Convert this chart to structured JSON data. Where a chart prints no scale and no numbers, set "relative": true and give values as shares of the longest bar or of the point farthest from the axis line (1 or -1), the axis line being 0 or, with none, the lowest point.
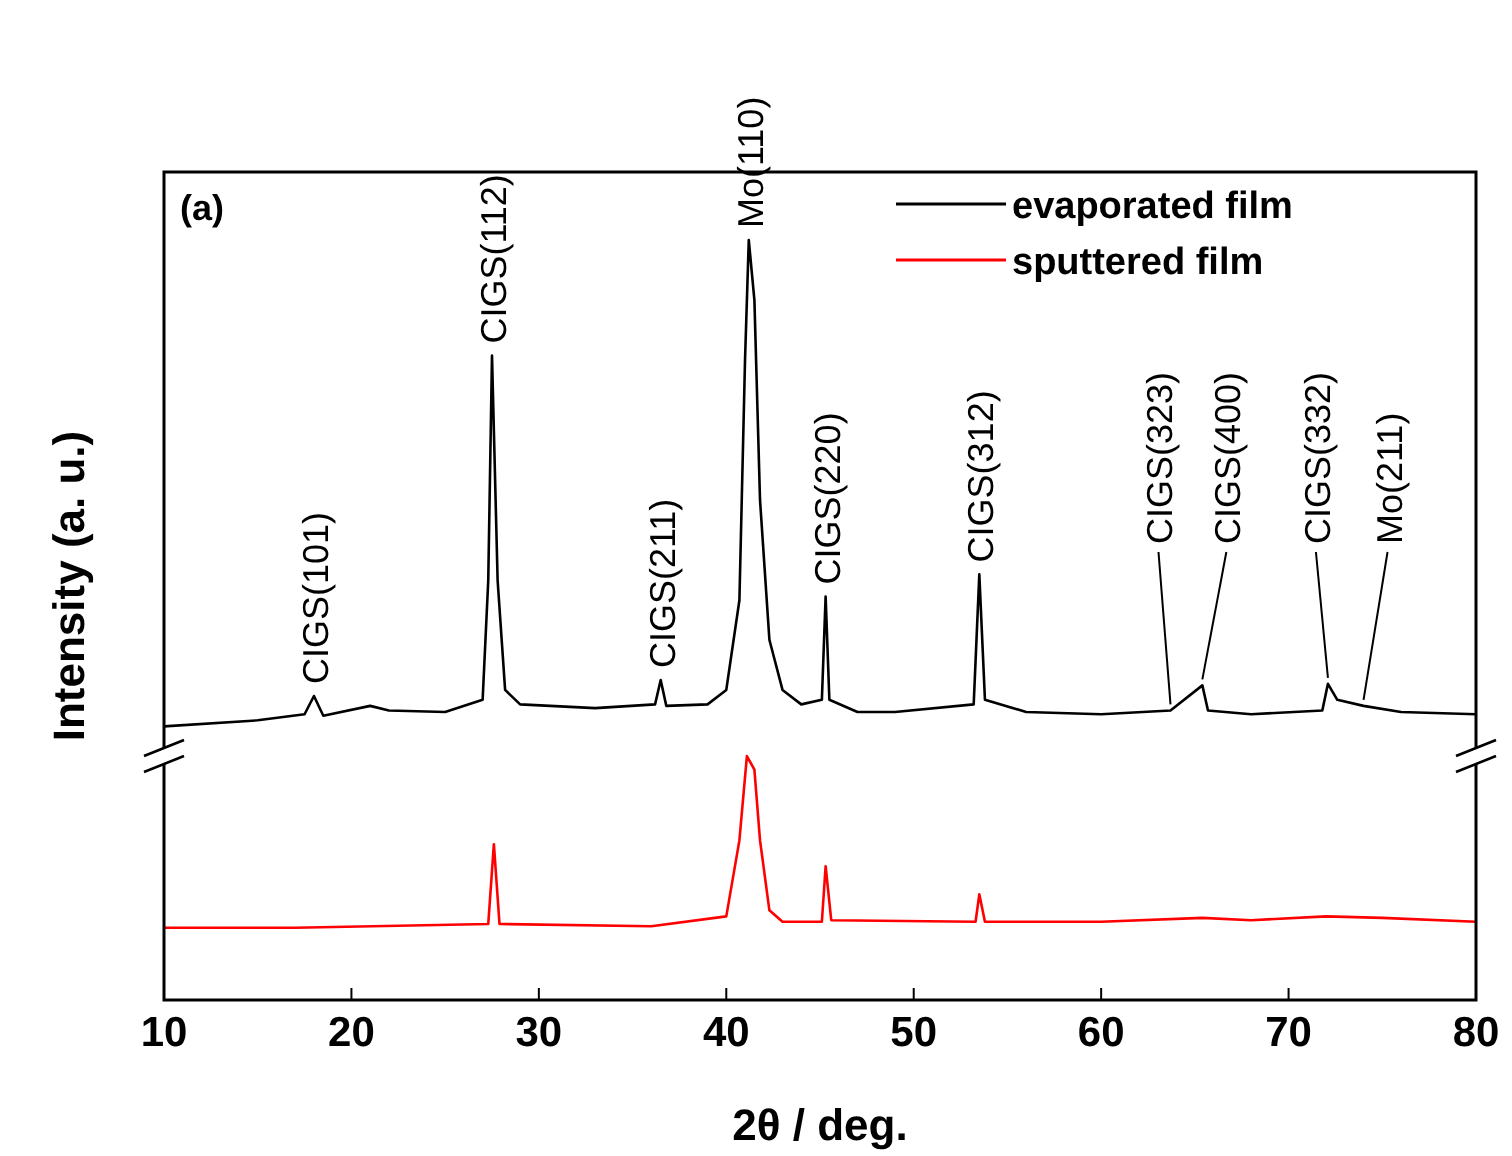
{
  "chart_data": {
    "type": "line",
    "relative": true,
    "xlabel": "2θ / deg.",
    "ylabel": "Intensity (a. u.)",
    "xlim": [
      10,
      80
    ],
    "xticks": [
      10,
      20,
      30,
      40,
      50,
      60,
      70,
      80
    ],
    "legend": "top right",
    "grid": false,
    "series": [
      {
        "name": "evaporated film",
        "color": "#000000",
        "x": [
          10,
          15,
          17.5,
          18,
          18.5,
          21,
          22,
          25,
          27,
          27.3,
          27.5,
          27.8,
          28.2,
          29,
          33,
          36.2,
          36.5,
          36.8,
          39,
          40,
          40.7,
          41.0,
          41.2,
          41.5,
          41.8,
          42.3,
          43,
          44,
          45.1,
          45.3,
          45.5,
          47,
          49,
          53.2,
          53.5,
          53.8,
          56,
          60,
          63.7,
          65.4,
          65.7,
          68,
          71.8,
          72.1,
          72.6,
          74,
          76,
          80
        ],
        "values": [
          0.36,
          0.368,
          0.376,
          0.4,
          0.374,
          0.387,
          0.381,
          0.379,
          0.395,
          0.552,
          0.848,
          0.552,
          0.408,
          0.389,
          0.384,
          0.389,
          0.421,
          0.387,
          0.389,
          0.408,
          0.526,
          0.842,
          1,
          0.921,
          0.658,
          0.474,
          0.408,
          0.389,
          0.395,
          0.531,
          0.395,
          0.379,
          0.379,
          0.389,
          0.56,
          0.395,
          0.379,
          0.376,
          0.381,
          0.414,
          0.381,
          0.376,
          0.381,
          0.416,
          0.395,
          0.387,
          0.379,
          0.376
        ]
      },
      {
        "name": "sputtered film",
        "color": "#ff0000",
        "x": [
          10,
          17,
          27.3,
          27.6,
          27.9,
          36,
          40,
          40.7,
          41.1,
          41.5,
          41.8,
          42.3,
          43,
          45.1,
          45.3,
          45.6,
          53.3,
          53.5,
          53.8,
          60,
          65.4,
          68,
          72,
          75,
          80
        ],
        "values": [
          0.095,
          0.095,
          0.1,
          0.205,
          0.1,
          0.097,
          0.11,
          0.21,
          0.321,
          0.303,
          0.21,
          0.118,
          0.103,
          0.103,
          0.176,
          0.105,
          0.103,
          0.139,
          0.103,
          0.103,
          0.108,
          0.105,
          0.11,
          0.108,
          0.103
        ]
      }
    ],
    "annotations": [
      "(a)",
      {
        "text": "CIGS(101)",
        "x": 18,
        "y": 0.4
      },
      {
        "text": "CIGS(112)",
        "x": 27.5,
        "y": 0.848
      },
      {
        "text": "CIGS(211)",
        "x": 36.5,
        "y": 0.421
      },
      {
        "text": "Mo(110)",
        "x": 41.2,
        "y": 1
      },
      {
        "text": "CIGS(220)",
        "x": 45.3,
        "y": 0.531
      },
      {
        "text": "CIGS(312)",
        "x": 53.5,
        "y": 0.56
      },
      {
        "text": "CIGS(323)",
        "x": 63.7,
        "y": 0.381
      },
      {
        "text": "CIGS(400)",
        "x": 65.4,
        "y": 0.414
      },
      {
        "text": "CIGS(332)",
        "x": 72.1,
        "y": 0.416
      },
      {
        "text": "Mo(211)",
        "x": 74,
        "y": 0.387
      }
    ]
  }
}
